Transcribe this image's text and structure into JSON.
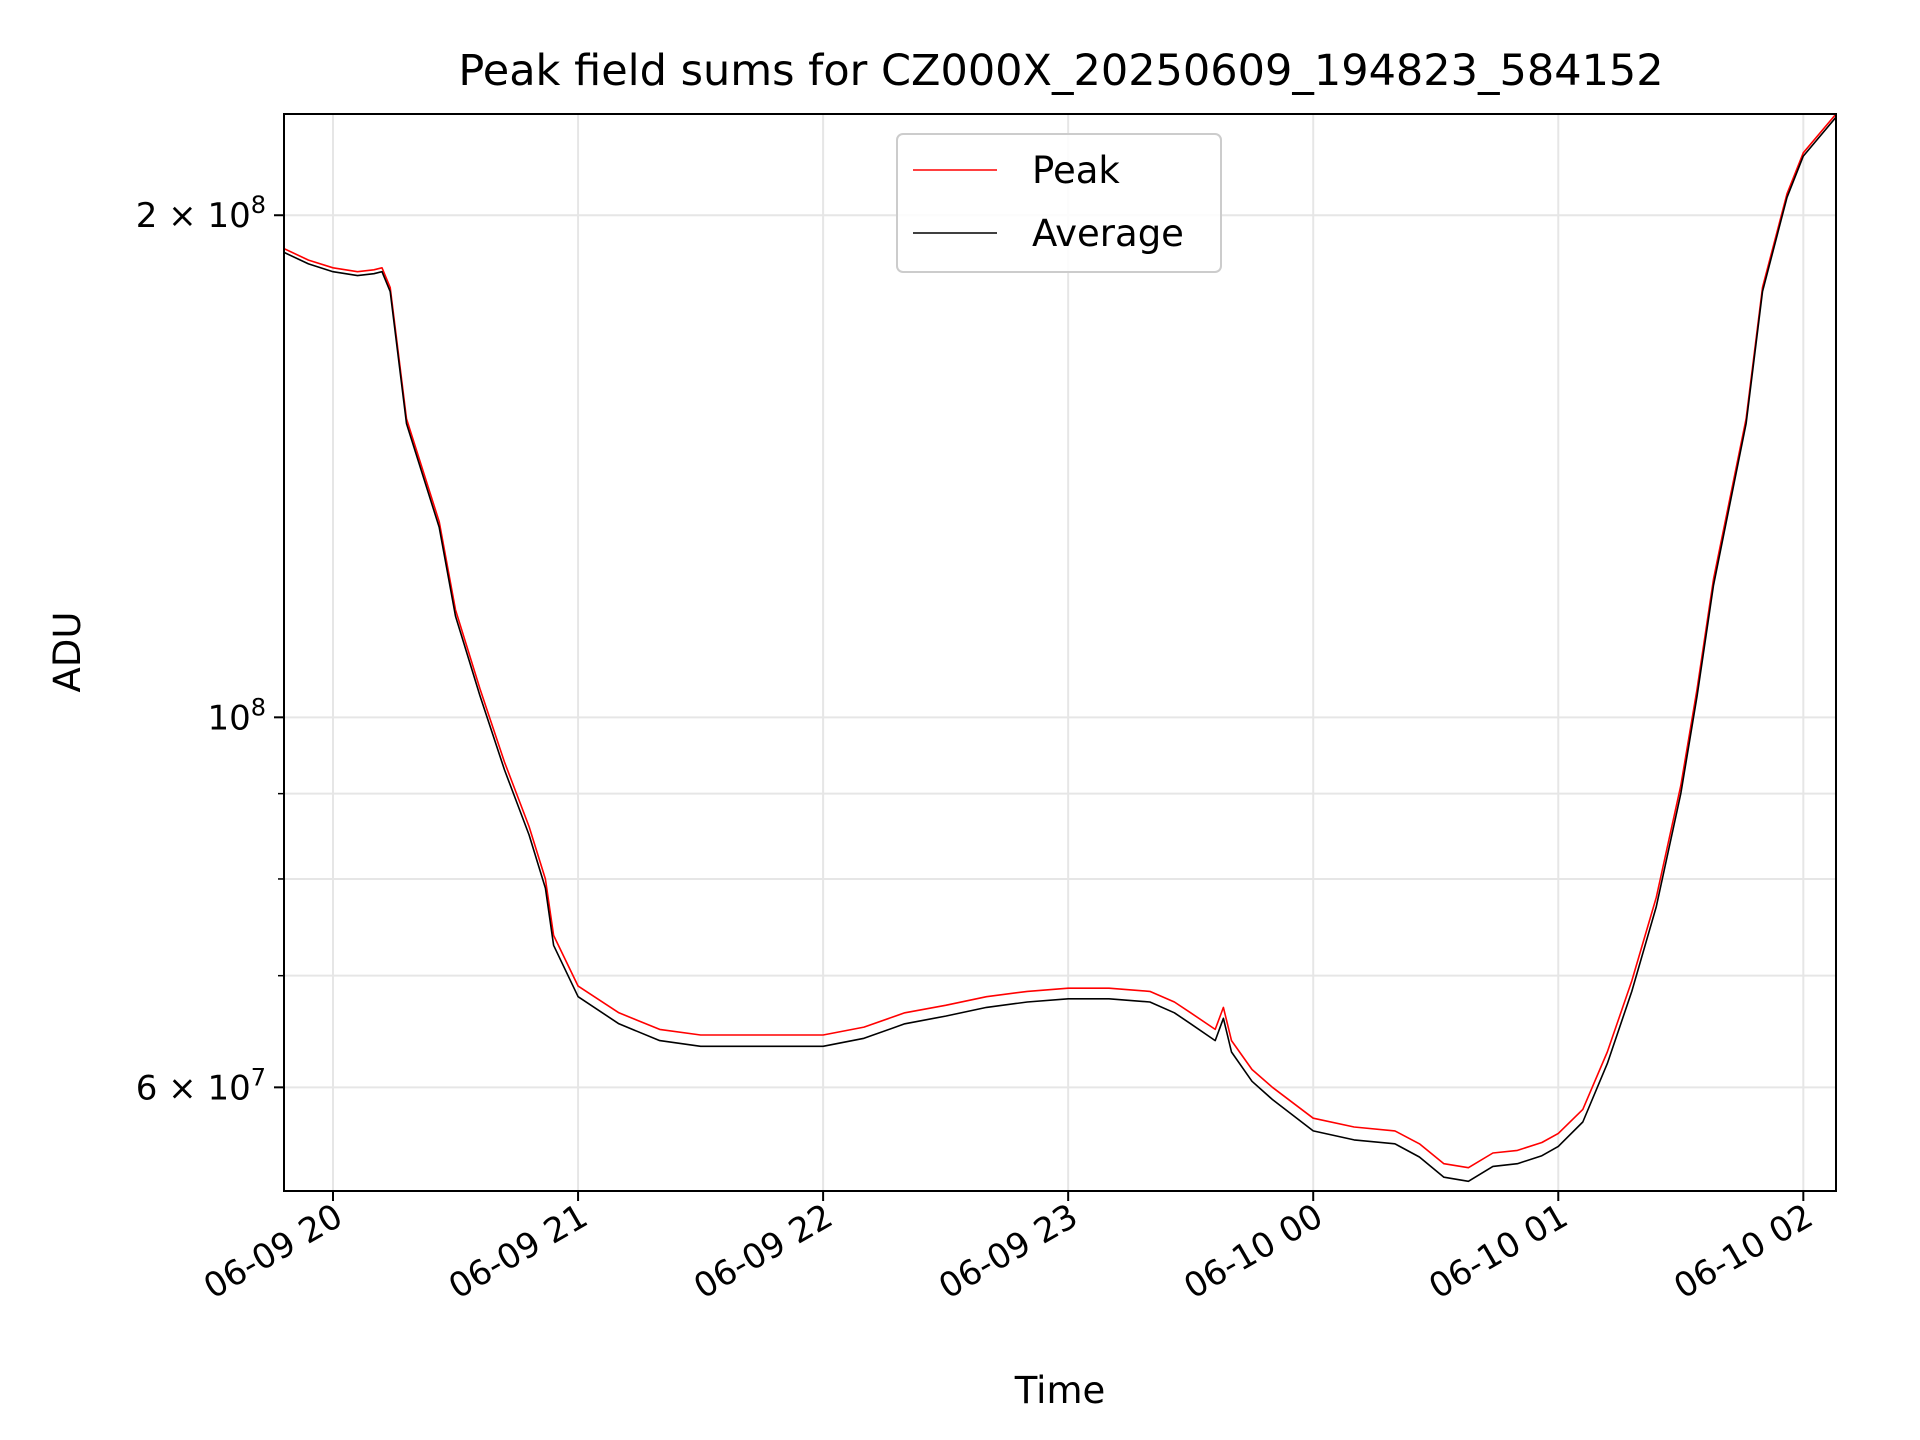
{
  "chart_data": {
    "type": "line",
    "title": "Peak field sums for CZ000X_20250609_194823_584152",
    "xlabel": "Time",
    "ylabel": "ADU",
    "yscale": "log",
    "ylim": [
      52000000,
      230000000
    ],
    "xlim": [
      "06-09 19:48",
      "06-10 02:08"
    ],
    "x_ticks": [
      {
        "t": "06-09 20:00",
        "label": "06-09 20"
      },
      {
        "t": "06-09 21:00",
        "label": "06-09 21"
      },
      {
        "t": "06-09 22:00",
        "label": "06-09 22"
      },
      {
        "t": "06-09 23:00",
        "label": "06-09 23"
      },
      {
        "t": "06-10 00:00",
        "label": "06-10 00"
      },
      {
        "t": "06-10 01:00",
        "label": "06-10 01"
      },
      {
        "t": "06-10 02:00",
        "label": "06-10 02"
      }
    ],
    "y_ticks": [
      {
        "value": 200000000,
        "mantissa": "2",
        "base": "10",
        "exp": "8"
      },
      {
        "value": 100000000,
        "mantissa": "",
        "base": "10",
        "exp": "8"
      },
      {
        "value": 60000000,
        "mantissa": "6",
        "base": "10",
        "exp": "7"
      }
    ],
    "y_minor_ticks": [
      70000000,
      80000000,
      90000000
    ],
    "grid": true,
    "legend_position": "top-center",
    "series": [
      {
        "name": "Peak",
        "color": "#ff0000"
      },
      {
        "name": "Average",
        "color": "#000000"
      }
    ],
    "x": [
      "06-09 19:48",
      "06-09 19:54",
      "06-09 20:00",
      "06-09 20:06",
      "06-09 20:10",
      "06-09 20:12",
      "06-09 20:14",
      "06-09 20:18",
      "06-09 20:26",
      "06-09 20:30",
      "06-09 20:36",
      "06-09 20:42",
      "06-09 20:48",
      "06-09 20:52",
      "06-09 20:54",
      "06-09 21:00",
      "06-09 21:10",
      "06-09 21:20",
      "06-09 21:30",
      "06-09 21:40",
      "06-09 21:50",
      "06-09 22:00",
      "06-09 22:10",
      "06-09 22:20",
      "06-09 22:30",
      "06-09 22:40",
      "06-09 22:50",
      "06-09 23:00",
      "06-09 23:10",
      "06-09 23:20",
      "06-09 23:26",
      "06-09 23:30",
      "06-09 23:36",
      "06-09 23:38",
      "06-09 23:40",
      "06-09 23:45",
      "06-09 23:50",
      "06-10 00:00",
      "06-10 00:10",
      "06-10 00:20",
      "06-10 00:26",
      "06-10 00:32",
      "06-10 00:38",
      "06-10 00:44",
      "06-10 00:50",
      "06-10 00:56",
      "06-10 01:00",
      "06-10 01:06",
      "06-10 01:12",
      "06-10 01:18",
      "06-10 01:24",
      "06-10 01:30",
      "06-10 01:34",
      "06-10 01:38",
      "06-10 01:46",
      "06-10 01:50",
      "06-10 01:56",
      "06-10 02:00",
      "06-10 02:08"
    ],
    "average": [
      190000000,
      187000000,
      185000000,
      184000000,
      184500000,
      185000000,
      180000000,
      150000000,
      130000000,
      115000000,
      103000000,
      93000000,
      85000000,
      79000000,
      73000000,
      68000000,
      65500000,
      64000000,
      63500000,
      63500000,
      63500000,
      63500000,
      64200000,
      65500000,
      66200000,
      67000000,
      67500000,
      67800000,
      67800000,
      67500000,
      66500000,
      65500000,
      64000000,
      66000000,
      63000000,
      60500000,
      59000000,
      56500000,
      55800000,
      55500000,
      54500000,
      53000000,
      52700000,
      53800000,
      54000000,
      54600000,
      55300000,
      57200000,
      62000000,
      68500000,
      77000000,
      90000000,
      103000000,
      120000000,
      150000000,
      180000000,
      205000000,
      217000000,
      229000000
    ],
    "peak": [
      191000000,
      188000000,
      186000000,
      185000000,
      185500000,
      186000000,
      181000000,
      151000000,
      131000000,
      116000000,
      104000000,
      94000000,
      86000000,
      80000000,
      74000000,
      69000000,
      66500000,
      65000000,
      64500000,
      64500000,
      64500000,
      64500000,
      65200000,
      66500000,
      67200000,
      68000000,
      68500000,
      68800000,
      68800000,
      68500000,
      67500000,
      66500000,
      65000000,
      67000000,
      64000000,
      61500000,
      60000000,
      57500000,
      56800000,
      56500000,
      55500000,
      54000000,
      53700000,
      54800000,
      55000000,
      55600000,
      56300000,
      58200000,
      63000000,
      69500000,
      78000000,
      91000000,
      104000000,
      121000000,
      151000000,
      181000000,
      206000000,
      218000000,
      230000000
    ]
  }
}
